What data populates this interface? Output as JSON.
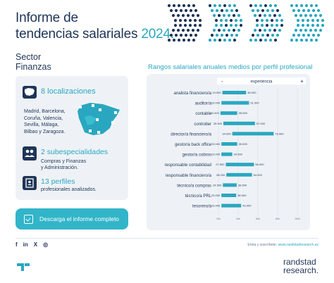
{
  "header": {
    "title_line1": "Informe de",
    "title_line2_plain": "tendencias salariales ",
    "title_line2_accent": "2024."
  },
  "sector": {
    "line1": "Sector",
    "line2": "Finanzas"
  },
  "card": {
    "localizaciones": "8 localizaciones",
    "cities": [
      "Madrid, Barcelona,",
      "Coruña, Valencia,",
      "Sevilla, Málaga,",
      "Bilbao y Zaragoza."
    ],
    "subespecialidades": "2 subespecialidades",
    "sub_text": [
      "Compras y Finanzas",
      "y Administración."
    ],
    "perfiles": "13 perfiles",
    "perfiles_text": "profesionales analizados."
  },
  "download_label": "Descarga el informe completo",
  "colors": {
    "navy": "#1f3557",
    "teal": "#2aa7c0",
    "bar": "#2aa7c0",
    "panel": "#eef2f6"
  },
  "chart_data": {
    "type": "bar",
    "title": "Rangos salariales anuales medios por perfil profesional",
    "legend": {
      "minus": "-",
      "label": "experiencia",
      "plus": "+"
    },
    "categories": [
      "analista financiero/a",
      "auditor/a",
      "contable",
      "controller",
      "director/a financiero/a",
      "gestor/a back office",
      "gestor/a cobros",
      "responsable contabilidad",
      "responsable financiero/a",
      "técnico/a compras",
      "técnico/a PRL",
      "tesorero/a"
    ],
    "series": [
      {
        "values_min": [
          24000,
          23000,
          22000,
          25000,
          34000,
          23000,
          23000,
          27500,
          28000,
          24500,
          23000,
          23000
        ],
        "values_max": [
          48000,
          51000,
          39000,
          57000,
          76000,
          39000,
          34000,
          56000,
          54000,
          38500,
          38000,
          43000
        ]
      }
    ],
    "labels_min": [
      "24.000",
      "23.000",
      "22.000",
      "25.000",
      "34.000",
      "23.000",
      "23.000",
      "27.500",
      "28.000",
      "24.500",
      "23.000",
      "23.000"
    ],
    "labels_max": [
      "48.000",
      "51.000",
      "39.000",
      "57.000",
      "76.000",
      "39.000",
      "34.000",
      "56.000",
      "54.000",
      "38.500",
      "38.000",
      "43.000"
    ],
    "x_ticks": [
      "20k",
      "40k",
      "60k",
      "80k",
      "100k"
    ],
    "xlim": [
      10000,
      100000
    ]
  },
  "footer": {
    "social": [
      "f",
      "in",
      "X",
      "◎"
    ],
    "subscribe_text": "Entra y suscríbete: ",
    "subscribe_url": "www.randstadresearch.es",
    "brand_line1": "randstad",
    "brand_line2": "research."
  }
}
